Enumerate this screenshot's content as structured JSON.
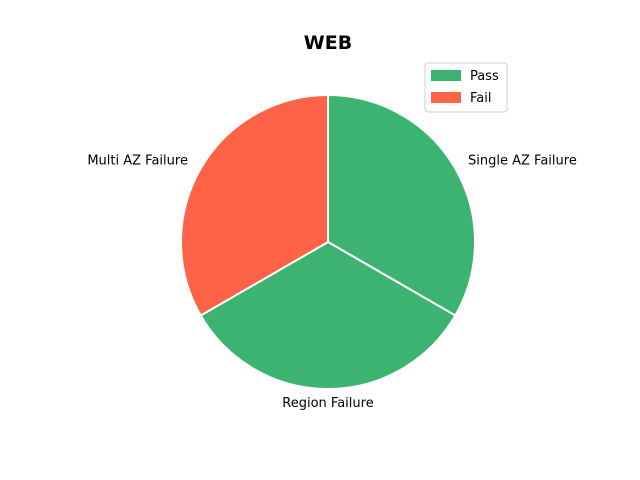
{
  "chart_data": {
    "type": "pie",
    "title": "WEB",
    "slices": [
      {
        "label": "Single AZ Failure",
        "value": 1,
        "status": "Pass",
        "color": "#3cb371"
      },
      {
        "label": "Region Failure",
        "value": 1,
        "status": "Pass",
        "color": "#3cb371"
      },
      {
        "label": "Multi AZ Failure",
        "value": 1,
        "status": "Fail",
        "color": "#ff6347"
      }
    ],
    "start_angle_deg": 90,
    "direction": "clockwise",
    "legend": {
      "placement": "top-right",
      "entries": [
        {
          "name": "Pass",
          "color": "#3cb371"
        },
        {
          "name": "Fail",
          "color": "#ff6347"
        }
      ]
    },
    "wedge_edge_color": "#ffffff"
  }
}
